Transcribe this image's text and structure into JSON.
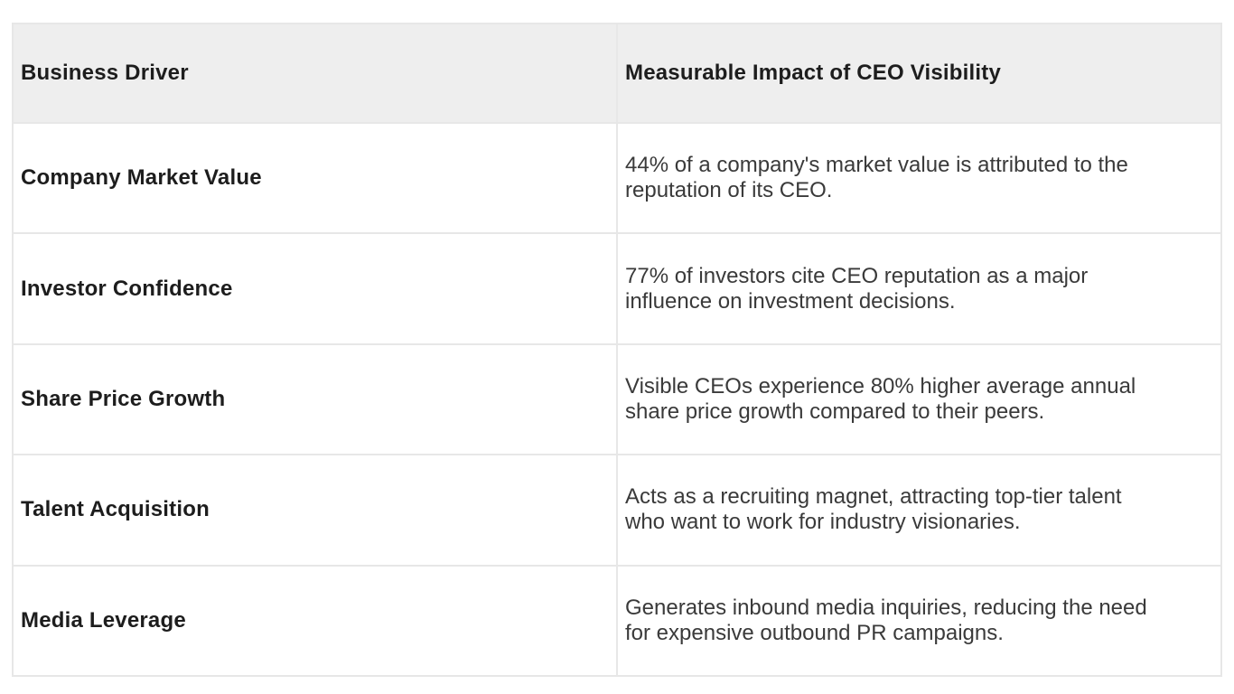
{
  "table": {
    "header": {
      "col1": "Business Driver",
      "col2": "Measurable Impact of CEO Visibility"
    },
    "rows": [
      {
        "driver": "Company Market Value",
        "impact": "44% of a company's market value is attributed to the reputation of its CEO."
      },
      {
        "driver": "Investor Confidence",
        "impact": "77% of investors cite CEO reputation as a major influence on investment decisions."
      },
      {
        "driver": "Share Price Growth",
        "impact": "Visible CEOs experience 80% higher average annual share price growth compared to their peers."
      },
      {
        "driver": "Talent Acquisition",
        "impact": "Acts as a recruiting magnet, attracting top-tier talent who want to work for industry visionaries."
      },
      {
        "driver": "Media Leverage",
        "impact": "Generates inbound media inquiries, reducing the need for expensive outbound PR campaigns."
      }
    ],
    "colors": {
      "header_bg": "#eeeeee",
      "grid": "#e7e7e7",
      "header_text": "#1d1d1d",
      "driver_text": "#1d1d1d",
      "impact_text": "#3a3a3a"
    }
  }
}
